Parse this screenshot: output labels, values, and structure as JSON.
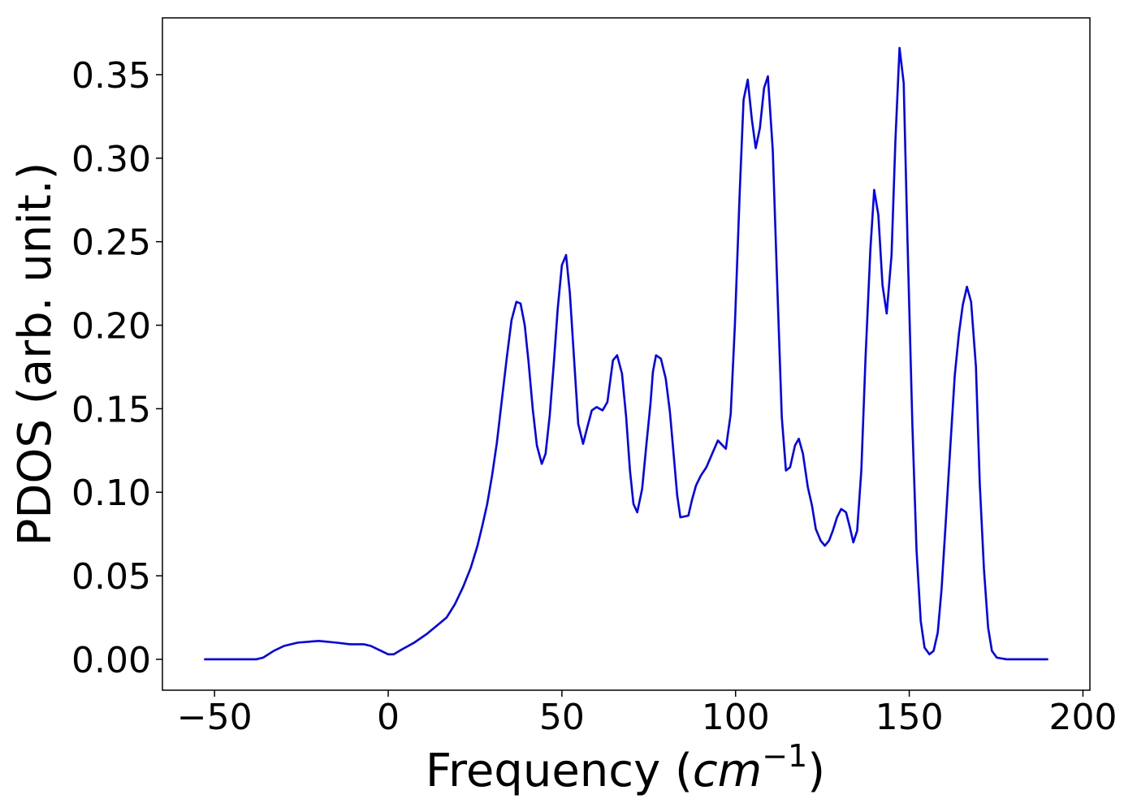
{
  "chart_data": {
    "type": "line",
    "xlabel": [
      "Frequency (",
      "cm",
      "−1",
      ")"
    ],
    "ylabel": "PDOS (arb. unit.)",
    "xlim": [
      -65,
      202
    ],
    "ylim": [
      -0.0185,
      0.384
    ],
    "xticks": [
      {
        "value": -50,
        "label": "−50"
      },
      0,
      50,
      100,
      150,
      200
    ],
    "yticks": [
      {
        "value": 0,
        "label": "0.00"
      },
      {
        "value": 0.05,
        "label": "0.05"
      },
      {
        "value": 0.1,
        "label": "0.10"
      },
      {
        "value": 0.15,
        "label": "0.15"
      },
      {
        "value": 0.2,
        "label": "0.20"
      },
      {
        "value": 0.25,
        "label": "0.25"
      },
      {
        "value": 0.3,
        "label": "0.30"
      },
      {
        "value": 0.35,
        "label": "0.35"
      }
    ],
    "series": [
      {
        "color": "#0000ff",
        "x": [
          -53,
          -38,
          -36,
          -33,
          -30,
          -26,
          -20,
          -15,
          -11,
          -7,
          -5,
          -2,
          0,
          1.6,
          4,
          7.5,
          11,
          14.5,
          16.8,
          19.2,
          21.5,
          23.8,
          25.7,
          27.1,
          28.5,
          29.9,
          31.3,
          32.7,
          34.1,
          35.5,
          36.9,
          38.1,
          39.3,
          40.4,
          41.6,
          42.8,
          44.2,
          45.3,
          46.5,
          47.7,
          48.8,
          50,
          51.2,
          52.3,
          53.5,
          54.7,
          56.1,
          57.2,
          58.6,
          60,
          61.7,
          63.1,
          64.7,
          65.9,
          67.3,
          68.5,
          69.6,
          70.6,
          71.7,
          73.1,
          74.3,
          75.5,
          76.2,
          77.1,
          78.5,
          79.9,
          81.1,
          82.2,
          83.2,
          84.1,
          86.4,
          87.4,
          88.6,
          90,
          91.6,
          94.9,
          97.2,
          98.6,
          99.8,
          101.2,
          102.3,
          103.5,
          104.7,
          105.8,
          107,
          108.2,
          109.3,
          110.7,
          111.9,
          113.3,
          114.5,
          115.7,
          117.1,
          118.2,
          119.4,
          120.8,
          122,
          123.1,
          124.5,
          125.7,
          126.9,
          128,
          129.2,
          130.4,
          131.8,
          132.9,
          133.9,
          135,
          136.2,
          137.4,
          138.8,
          139.9,
          141.1,
          142.3,
          143.5,
          144.9,
          146,
          147.2,
          148.4,
          149.5,
          150.9,
          152.1,
          153.3,
          154.4,
          155.8,
          157,
          158.2,
          159.3,
          160.5,
          161.9,
          163.1,
          164.3,
          165.4,
          166.6,
          167.8,
          169.2,
          170.3,
          171.5,
          172.7,
          173.8,
          175.2,
          178,
          190
        ],
        "values": [
          0,
          0,
          0.001,
          0.005,
          0.008,
          0.01,
          0.011,
          0.01,
          0.009,
          0.009,
          0.008,
          0.005,
          0.003,
          0.003,
          0.006,
          0.01,
          0.015,
          0.021,
          0.025,
          0.033,
          0.043,
          0.055,
          0.068,
          0.08,
          0.093,
          0.11,
          0.13,
          0.155,
          0.18,
          0.203,
          0.214,
          0.213,
          0.2,
          0.178,
          0.15,
          0.128,
          0.117,
          0.123,
          0.146,
          0.178,
          0.21,
          0.236,
          0.242,
          0.219,
          0.18,
          0.141,
          0.129,
          0.138,
          0.149,
          0.151,
          0.149,
          0.154,
          0.179,
          0.182,
          0.171,
          0.145,
          0.113,
          0.093,
          0.088,
          0.102,
          0.128,
          0.153,
          0.172,
          0.182,
          0.18,
          0.168,
          0.148,
          0.122,
          0.098,
          0.085,
          0.086,
          0.095,
          0.104,
          0.11,
          0.115,
          0.131,
          0.126,
          0.147,
          0.2,
          0.28,
          0.335,
          0.347,
          0.323,
          0.306,
          0.318,
          0.342,
          0.349,
          0.305,
          0.23,
          0.145,
          0.113,
          0.115,
          0.128,
          0.132,
          0.123,
          0.103,
          0.092,
          0.078,
          0.071,
          0.068,
          0.071,
          0.077,
          0.085,
          0.09,
          0.088,
          0.079,
          0.07,
          0.077,
          0.113,
          0.18,
          0.245,
          0.281,
          0.266,
          0.224,
          0.207,
          0.242,
          0.31,
          0.366,
          0.345,
          0.25,
          0.14,
          0.065,
          0.023,
          0.007,
          0.003,
          0.005,
          0.016,
          0.042,
          0.082,
          0.13,
          0.17,
          0.195,
          0.212,
          0.223,
          0.214,
          0.175,
          0.105,
          0.054,
          0.019,
          0.005,
          0.001,
          0,
          0
        ]
      }
    ]
  }
}
